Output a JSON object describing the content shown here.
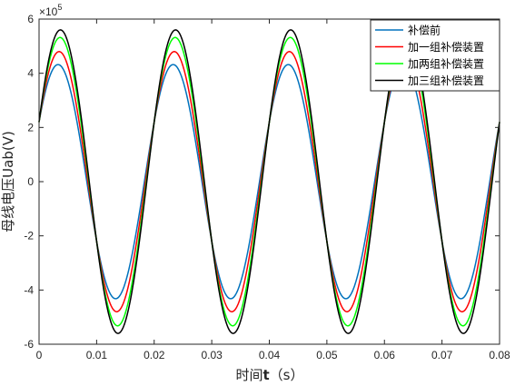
{
  "chart_data": {
    "type": "line",
    "title": "",
    "xlabel_text": "时间",
    "xlabel_bold": "t",
    "xlabel_unit": "（s）",
    "ylabel": "母线电压Uab(V)",
    "y_exponent_base": "×10",
    "y_exponent_power": "5",
    "xlim": [
      0,
      0.08
    ],
    "ylim": [
      -6,
      6
    ],
    "x_ticks": [
      0,
      0.01,
      0.02,
      0.03,
      0.04,
      0.05,
      0.06,
      0.07,
      0.08
    ],
    "x_tick_labels": [
      "0",
      "0.01",
      "0.02",
      "0.03",
      "0.04",
      "0.05",
      "0.06",
      "0.07",
      "0.08"
    ],
    "y_ticks": [
      -6,
      -4,
      -2,
      0,
      2,
      4,
      6
    ],
    "y_tick_labels": [
      "-6",
      "-4",
      "-2",
      "0",
      "2",
      "4",
      "6"
    ],
    "frequency_hz": 50,
    "y_at_t0": 2.2,
    "legend_position": "top-right",
    "grid": false,
    "series": [
      {
        "name": "补偿前",
        "color": "#0072BD",
        "amplitude": 4.32
      },
      {
        "name": "加一组补偿装置",
        "color": "#FF0000",
        "amplitude": 4.8
      },
      {
        "name": "加两组补偿装置",
        "color": "#00FF00",
        "amplitude": 5.32
      },
      {
        "name": "加三组补偿装置",
        "color": "#000000",
        "amplitude": 5.6
      }
    ]
  }
}
